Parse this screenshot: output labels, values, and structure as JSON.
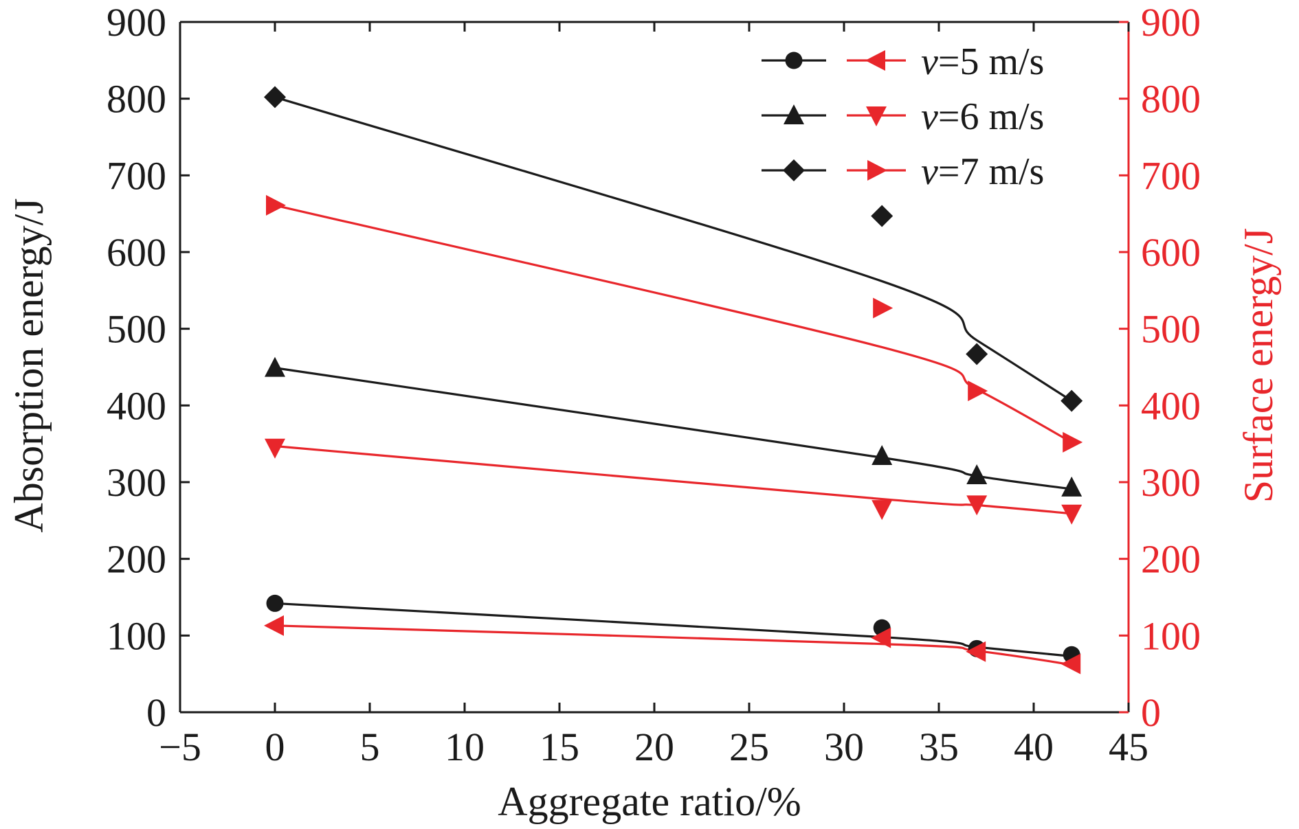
{
  "chart_data": {
    "type": "scatter",
    "xlabel": "Aggregate ratio/%",
    "ylabel_left": "Absorption energy/J",
    "ylabel_right": "Surface energy/J",
    "xlim": [
      -5,
      45
    ],
    "ylim_left": [
      0,
      900
    ],
    "ylim_right": [
      0,
      900
    ],
    "x_ticks": [
      "−5",
      "0",
      "5",
      "10",
      "15",
      "20",
      "25",
      "30",
      "35",
      "40",
      "45"
    ],
    "y_ticks": [
      "0",
      "100",
      "200",
      "300",
      "400",
      "500",
      "600",
      "700",
      "800",
      "900"
    ],
    "grid": false,
    "legend_position": "top-right",
    "legend": [
      {
        "symbol": "v",
        "text": "=5 m/s"
      },
      {
        "symbol": "v",
        "text": "=6 m/s"
      },
      {
        "symbol": "v",
        "text": "=7 m/s"
      }
    ],
    "colors": {
      "absorption": "#1a1a1a",
      "surface": "#e8262b"
    },
    "series": [
      {
        "group": "absorption",
        "velocity": "v=5 m/s",
        "marker": "circle",
        "x": [
          0,
          32,
          37,
          42
        ],
        "y": [
          142,
          110,
          83,
          75
        ],
        "fit": [
          142,
          98,
          85,
          73
        ]
      },
      {
        "group": "absorption",
        "velocity": "v=6 m/s",
        "marker": "triangle-up",
        "x": [
          0,
          32,
          37,
          42
        ],
        "y": [
          449,
          334,
          309,
          293
        ],
        "fit": [
          449,
          332,
          308,
          291
        ]
      },
      {
        "group": "absorption",
        "velocity": "v=7 m/s",
        "marker": "diamond",
        "x": [
          0,
          32,
          37,
          42
        ],
        "y": [
          802,
          647,
          467,
          406
        ],
        "fit": [
          802,
          562,
          485,
          406
        ]
      },
      {
        "group": "surface",
        "velocity": "v=5 m/s",
        "marker": "triangle-left",
        "x": [
          0,
          32,
          37,
          42
        ],
        "y": [
          113,
          97,
          79,
          63
        ],
        "fit": [
          113,
          89,
          80,
          62
        ]
      },
      {
        "group": "surface",
        "velocity": "v=6 m/s",
        "marker": "triangle-down",
        "x": [
          0,
          32,
          37,
          42
        ],
        "y": [
          345,
          265,
          271,
          259
        ],
        "fit": [
          347,
          278,
          270,
          259
        ]
      },
      {
        "group": "surface",
        "velocity": "v=7 m/s",
        "marker": "triangle-right",
        "x": [
          0,
          32,
          37,
          42
        ],
        "y": [
          661,
          527,
          419,
          352
        ],
        "fit": [
          661,
          476,
          421,
          352
        ]
      }
    ]
  }
}
